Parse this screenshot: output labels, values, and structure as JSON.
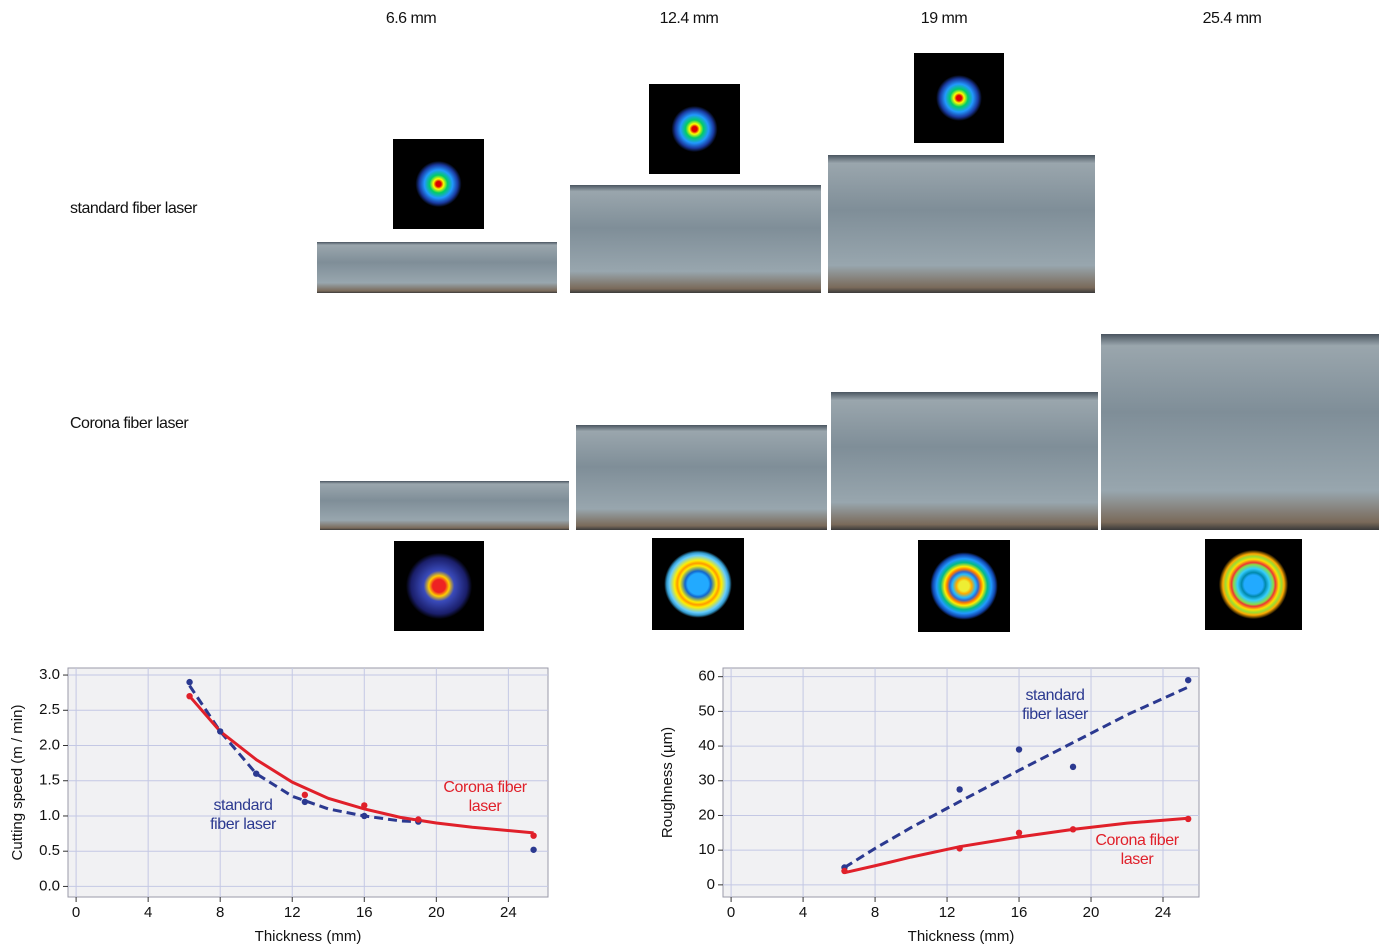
{
  "columns": [
    "6.6 mm",
    "12.4 mm",
    "19 mm",
    "25.4 mm"
  ],
  "rows": [
    "standard fiber laser",
    "Corona fiber laser"
  ],
  "chart_data": [
    {
      "type": "line",
      "xlabel": "Thickness (mm)",
      "ylabel": "Cutting speed (m / min)",
      "xlim": [
        -0.45,
        26.2
      ],
      "ylim": [
        -0.15,
        3.1
      ],
      "xticks": [
        0,
        4,
        8,
        12,
        16,
        20,
        24
      ],
      "yticks": [
        {
          "value": 0,
          "label": "0.0"
        },
        0.5,
        {
          "value": 1,
          "label": "1.0"
        },
        1.5,
        {
          "value": 2,
          "label": "2.0"
        },
        2.5,
        {
          "value": 3,
          "label": "3.0"
        }
      ],
      "grid": true,
      "series": [
        {
          "name": "standard fiber laser",
          "color": "#2b3990",
          "style": "dashed",
          "x": [
            6.3,
            8,
            10,
            12,
            14,
            16,
            18,
            19
          ],
          "values": [
            2.85,
            2.2,
            1.6,
            1.28,
            1.1,
            1.0,
            0.93,
            0.92
          ]
        },
        {
          "name": "Corona fiber laser",
          "color": "#e0202a",
          "style": "solid",
          "x": [
            6.3,
            8,
            10,
            12,
            14,
            16,
            18,
            20,
            22,
            25.4
          ],
          "values": [
            2.7,
            2.2,
            1.8,
            1.48,
            1.25,
            1.1,
            0.98,
            0.9,
            0.84,
            0.76
          ]
        },
        {
          "color": "#2b3990",
          "style": "dot",
          "x": [
            6.3,
            8,
            10,
            12.7,
            16,
            19,
            25.4
          ],
          "values": [
            2.9,
            2.2,
            1.6,
            1.2,
            1.0,
            0.92,
            0.52
          ]
        },
        {
          "color": "#e0202a",
          "style": "dot",
          "x": [
            6.3,
            12.7,
            16,
            19,
            25.4
          ],
          "values": [
            2.7,
            1.3,
            1.15,
            0.95,
            0.72
          ]
        }
      ]
    },
    {
      "type": "line",
      "xlabel": "Thickness (mm)",
      "ylabel": "Roughness (µm)",
      "xlim": [
        -0.45,
        26
      ],
      "ylim": [
        -3.5,
        62.5
      ],
      "xticks": [
        0,
        4,
        8,
        12,
        16,
        20,
        24
      ],
      "yticks": [
        0,
        10,
        20,
        30,
        40,
        50,
        60
      ],
      "grid": true,
      "series": [
        {
          "name": "standard fiber laser",
          "color": "#2b3990",
          "style": "dashed",
          "x": [
            6.3,
            8,
            10,
            12.7,
            16,
            19,
            22,
            25.4
          ],
          "values": [
            5,
            10.5,
            16.5,
            24,
            33,
            41,
            49,
            57
          ]
        },
        {
          "name": "Corona fiber laser",
          "color": "#e0202a",
          "style": "solid",
          "x": [
            6.3,
            8,
            10,
            12.7,
            16,
            19,
            22,
            25.4
          ],
          "values": [
            3.5,
            5.5,
            8,
            11,
            13.8,
            16,
            17.8,
            19.2
          ]
        },
        {
          "color": "#2b3990",
          "style": "dot",
          "x": [
            6.3,
            12.7,
            16,
            19,
            25.4
          ],
          "values": [
            5,
            27.5,
            39,
            34,
            59
          ]
        },
        {
          "color": "#e0202a",
          "style": "dot",
          "x": [
            6.3,
            12.7,
            16,
            19,
            25.4
          ],
          "values": [
            4,
            10.5,
            15,
            16,
            19
          ]
        }
      ]
    }
  ]
}
